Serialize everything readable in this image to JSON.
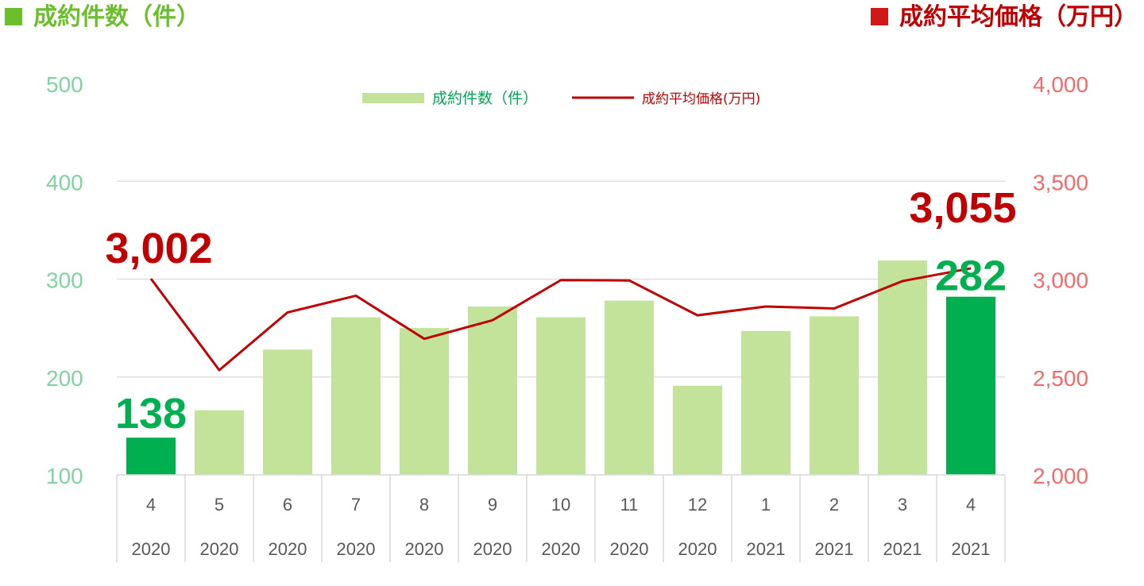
{
  "header": {
    "left_title": "成約件数（件）",
    "right_title": "成約平均価格（万円）",
    "left_color": "#6cbf2c",
    "right_color": "#c00000"
  },
  "chart_data": {
    "type": "bar",
    "categories": [
      {
        "month": "4",
        "year": "2020"
      },
      {
        "month": "5",
        "year": "2020"
      },
      {
        "month": "6",
        "year": "2020"
      },
      {
        "month": "7",
        "year": "2020"
      },
      {
        "month": "8",
        "year": "2020"
      },
      {
        "month": "9",
        "year": "2020"
      },
      {
        "month": "10",
        "year": "2020"
      },
      {
        "month": "11",
        "year": "2020"
      },
      {
        "month": "12",
        "year": "2020"
      },
      {
        "month": "1",
        "year": "2021"
      },
      {
        "month": "2",
        "year": "2021"
      },
      {
        "month": "3",
        "year": "2021"
      },
      {
        "month": "4",
        "year": "2021"
      }
    ],
    "series": [
      {
        "name": "成約件数（件）",
        "type": "bar",
        "axis": "left",
        "values": [
          138,
          166,
          228,
          261,
          250,
          272,
          261,
          278,
          191,
          247,
          262,
          319,
          282
        ],
        "color": "#c3e39b",
        "highlight_color": "#00b050",
        "highlight_indices": [
          0,
          12
        ]
      },
      {
        "name": "成約平均価格(万円)",
        "type": "line",
        "axis": "right",
        "values": [
          3002,
          2535,
          2830,
          2915,
          2695,
          2790,
          2995,
          2993,
          2815,
          2860,
          2850,
          2990,
          3055
        ],
        "color": "#c00000"
      }
    ],
    "left_axis": {
      "min": 100,
      "max": 500,
      "ticks": [
        "100",
        "200",
        "300",
        "400",
        "500"
      ],
      "color": "#7fd4a0"
    },
    "right_axis": {
      "min": 2000,
      "max": 4000,
      "ticks": [
        "2,000",
        "2,500",
        "3,000",
        "3,500",
        "4,000"
      ],
      "color": "#f26b6b"
    },
    "annotations": {
      "bar_first": "138",
      "bar_last": "282",
      "line_first": "3,002",
      "line_last": "3,055",
      "bar_label_color": "#00b050",
      "line_label_color": "#c00000"
    },
    "grid": true,
    "legend_position": "top-center"
  }
}
